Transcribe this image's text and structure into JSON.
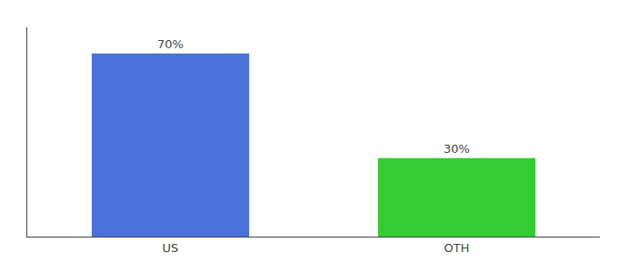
{
  "chart_data": {
    "type": "bar",
    "categories": [
      "US",
      "OTH"
    ],
    "values": [
      70,
      30
    ],
    "value_labels": [
      "70%",
      "30%"
    ],
    "data_labels": true,
    "colors": [
      "#4a72d9",
      "#33cc33"
    ],
    "ylim": [
      0,
      80
    ],
    "grid": false,
    "tick_labels": "x"
  }
}
